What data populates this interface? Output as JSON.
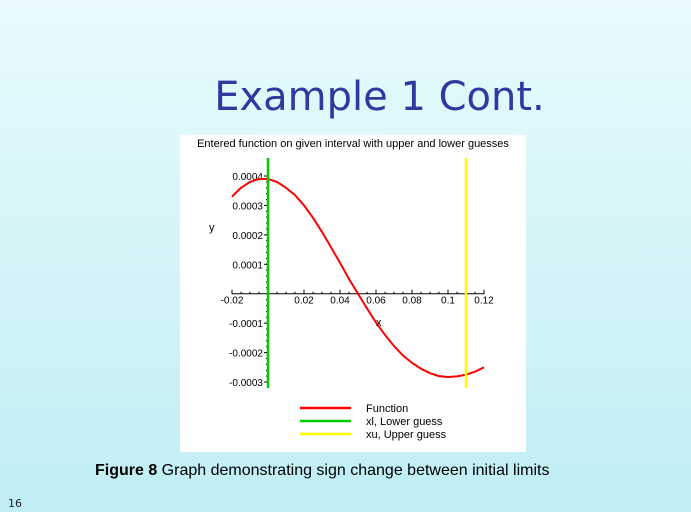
{
  "slide": {
    "title": "Example 1 Cont.",
    "caption_label": "Figure 8",
    "caption_text": " Graph demonstrating sign change between initial limits",
    "slide_number": "16"
  },
  "chart_data": {
    "type": "line",
    "title": "Entered function on given interval with upper and lower guesses",
    "xlabel": "x",
    "ylabel": "y",
    "xlim": [
      -0.02,
      0.12
    ],
    "ylim": [
      -0.0003,
      0.0004
    ],
    "x_ticks": [
      -0.02,
      0.02,
      0.04,
      0.06,
      0.08,
      0.1,
      0.12
    ],
    "x_tick_labels": [
      "-0.02",
      "0.02",
      "0.04",
      "0.06",
      "0.08",
      "0.1",
      "0.12"
    ],
    "y_ticks": [
      -0.0003,
      -0.0002,
      -0.0001,
      0.0001,
      0.0002,
      0.0003,
      0.0004
    ],
    "y_tick_labels": [
      "-0.0003",
      "-0.0002",
      "-0.0001",
      "0.0001",
      "0.0002",
      "0.0003",
      "0.0004"
    ],
    "legend_position": "bottom",
    "series": [
      {
        "name": "Function",
        "color": "#ff0000",
        "x": [
          -0.02,
          -0.015,
          -0.01,
          -0.005,
          0.0,
          0.005,
          0.01,
          0.015,
          0.02,
          0.025,
          0.03,
          0.035,
          0.04,
          0.045,
          0.05,
          0.055,
          0.06,
          0.065,
          0.07,
          0.075,
          0.08,
          0.085,
          0.09,
          0.095,
          0.1,
          0.105,
          0.11,
          0.115,
          0.12
        ],
        "y": [
          0.00033,
          0.00036,
          0.00038,
          0.00039,
          0.00039,
          0.00038,
          0.00036,
          0.000335,
          0.0003,
          0.000258,
          0.00021,
          0.000158,
          0.000105,
          5e-05,
          0.0,
          -5e-05,
          -9.8e-05,
          -0.00014,
          -0.000178,
          -0.00021,
          -0.000235,
          -0.000255,
          -0.00027,
          -0.00028,
          -0.000283,
          -0.000281,
          -0.000275,
          -0.000265,
          -0.00025
        ]
      },
      {
        "name": "xl, Lower guess",
        "color": "#00cc00",
        "x_value": 0.0
      },
      {
        "name": "xu, Upper guess",
        "color": "#ffff00",
        "x_value": 0.11
      }
    ]
  }
}
